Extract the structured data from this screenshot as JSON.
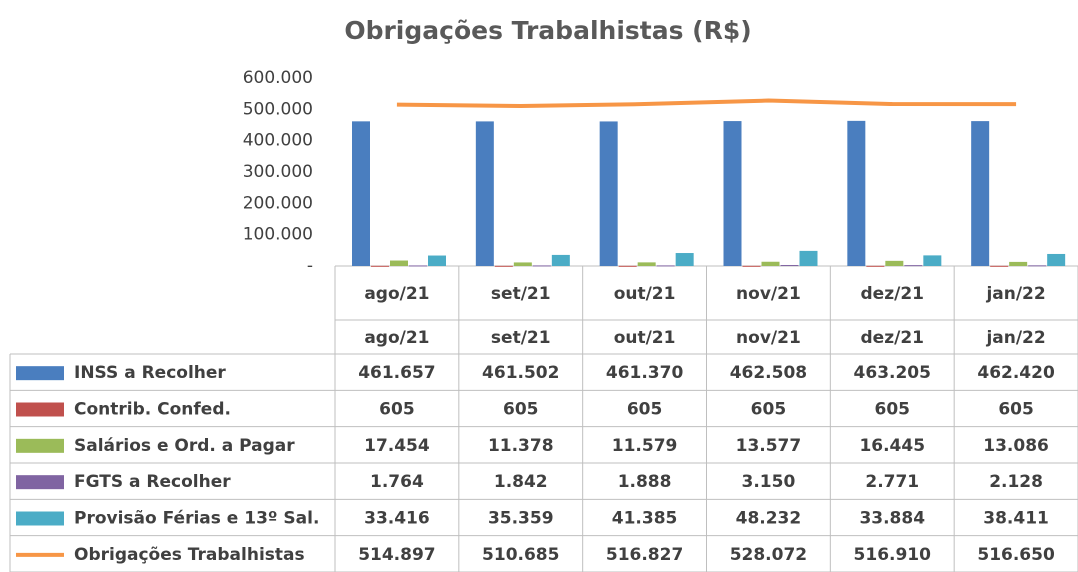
{
  "chart_data": {
    "type": "bar_line_table",
    "title": "Obrigações Trabalhistas (R$)",
    "categories": [
      "ago/21",
      "set/21",
      "out/21",
      "nov/21",
      "dez/21",
      "jan/22"
    ],
    "ylim": [
      0,
      600000
    ],
    "yticks": [
      {
        "value": 0,
        "label": "-"
      },
      {
        "value": 100000,
        "label": "100.000"
      },
      {
        "value": 200000,
        "label": "200.000"
      },
      {
        "value": 300000,
        "label": "300.000"
      },
      {
        "value": 400000,
        "label": "400.000"
      },
      {
        "value": 500000,
        "label": "500.000"
      },
      {
        "value": 600000,
        "label": "600.000"
      }
    ],
    "grid": false,
    "series": [
      {
        "name": "INSS a Recolher",
        "type": "bar",
        "color": "#4a7ebf",
        "values": [
          461657,
          461502,
          461370,
          462508,
          463205,
          462420
        ],
        "value_labels": [
          "461.657",
          "461.502",
          "461.370",
          "462.508",
          "463.205",
          "462.420"
        ]
      },
      {
        "name": "Contrib. Confed.",
        "type": "bar",
        "color": "#c0504d",
        "values": [
          605,
          605,
          605,
          605,
          605,
          605
        ],
        "value_labels": [
          "605",
          "605",
          "605",
          "605",
          "605",
          "605"
        ]
      },
      {
        "name": "Salários e Ord. a Pagar",
        "type": "bar",
        "color": "#9bbb59",
        "values": [
          17454,
          11378,
          11579,
          13577,
          16445,
          13086
        ],
        "value_labels": [
          "17.454",
          "11.378",
          "11.579",
          "13.577",
          "16.445",
          "13.086"
        ]
      },
      {
        "name": "FGTS a Recolher",
        "type": "bar",
        "color": "#8064a2",
        "values": [
          1764,
          1842,
          1888,
          3150,
          2771,
          2128
        ],
        "value_labels": [
          "1.764",
          "1.842",
          "1.888",
          "3.150",
          "2.771",
          "2.128"
        ]
      },
      {
        "name": "Provisão Férias e 13º Sal.",
        "type": "bar",
        "color": "#4bacc6",
        "values": [
          33416,
          35359,
          41385,
          48232,
          33884,
          38411
        ],
        "value_labels": [
          "33.416",
          "35.359",
          "41.385",
          "48.232",
          "33.884",
          "38.411"
        ]
      },
      {
        "name": "Obrigações Trabalhistas",
        "type": "line",
        "color": "#f79646",
        "values": [
          514897,
          510685,
          516827,
          528072,
          516910,
          516650
        ],
        "value_labels": [
          "514.897",
          "510.685",
          "516.827",
          "528.072",
          "516.910",
          "516.650"
        ]
      }
    ]
  }
}
